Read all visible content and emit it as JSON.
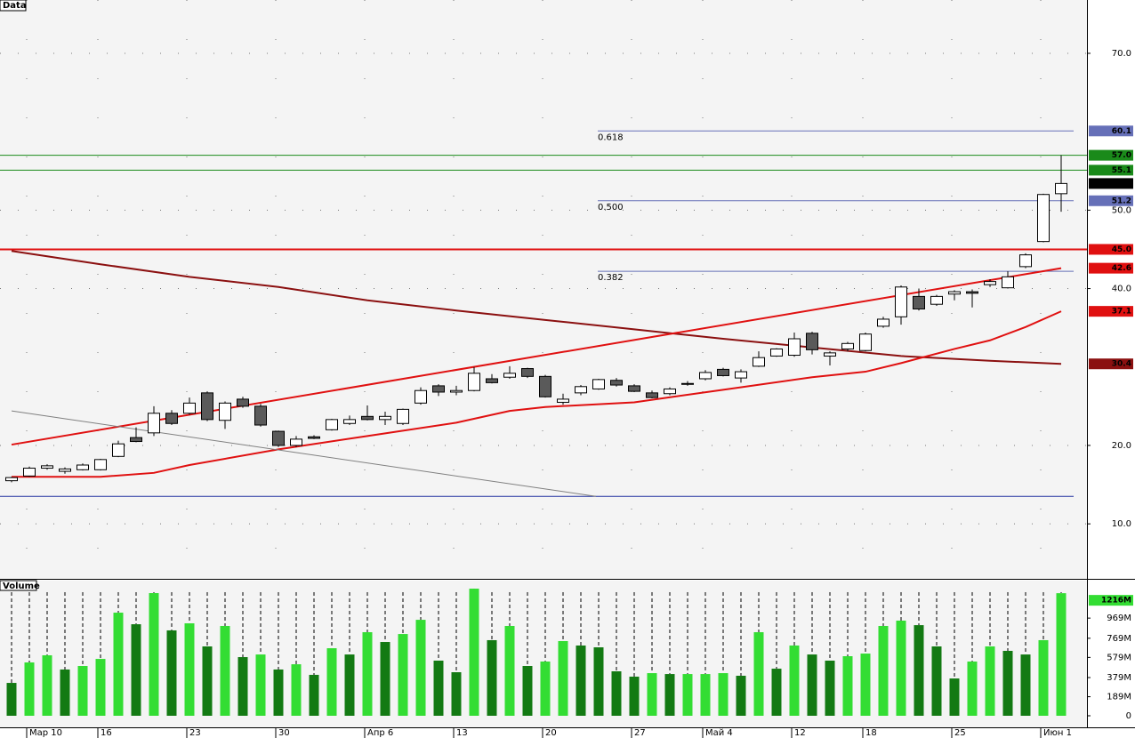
{
  "chart_data": {
    "type": "candlestick",
    "panel_title": "Data",
    "categories": [
      null,
      "Мар 10",
      null,
      null,
      null,
      "16",
      null,
      null,
      null,
      null,
      "23",
      null,
      null,
      null,
      null,
      "30",
      null,
      null,
      null,
      null,
      "Апр 6",
      null,
      null,
      null,
      null,
      "13",
      null,
      null,
      null,
      null,
      "20",
      null,
      null,
      null,
      null,
      "27",
      null,
      null,
      null,
      "Май 4",
      null,
      null,
      null,
      null,
      "12",
      null,
      null,
      null,
      "18",
      null,
      null,
      null,
      null,
      "25",
      null,
      null,
      null,
      null,
      "Июн 1",
      null
    ],
    "open": [
      15.5,
      16.1,
      17.1,
      16.7,
      16.9,
      16.9,
      18.6,
      21.0,
      21.6,
      24.1,
      24.1,
      26.7,
      23.2,
      25.9,
      25.0,
      21.8,
      20.0,
      21.1,
      22.0,
      22.8,
      23.7,
      23.3,
      22.8,
      25.4,
      27.6,
      26.8,
      27.0,
      28.5,
      28.7,
      29.8,
      28.8,
      25.5,
      26.7,
      27.2,
      28.3,
      27.6,
      26.7,
      26.6,
      27.8,
      28.5,
      29.7,
      28.6,
      30.1,
      31.4,
      31.5,
      34.3,
      31.4,
      32.3,
      32.1,
      35.2,
      36.4,
      39.0,
      38.0,
      39.3,
      39.6,
      40.5,
      40.1,
      42.8,
      46.0,
      52.1
    ],
    "high": [
      16.0,
      17.3,
      17.6,
      17.2,
      17.7,
      18.3,
      20.6,
      22.3,
      25.0,
      24.5,
      26.1,
      26.9,
      25.6,
      26.2,
      25.3,
      21.9,
      21.2,
      21.3,
      23.4,
      23.8,
      25.1,
      24.3,
      24.7,
      27.4,
      27.8,
      27.6,
      30.0,
      29.1,
      30.1,
      29.9,
      29.0,
      26.6,
      27.7,
      28.5,
      28.6,
      27.8,
      27.0,
      27.4,
      28.2,
      29.6,
      29.9,
      29.7,
      32.0,
      32.4,
      34.4,
      34.5,
      32.0,
      33.2,
      34.4,
      36.4,
      40.4,
      40.0,
      39.2,
      39.8,
      39.9,
      41.2,
      42.2,
      44.5,
      52.1,
      57.0
    ],
    "low": [
      15.3,
      16.0,
      16.9,
      16.4,
      16.8,
      16.8,
      18.5,
      20.4,
      21.2,
      22.6,
      23.9,
      23.1,
      22.1,
      24.8,
      22.4,
      19.8,
      19.8,
      20.8,
      21.9,
      22.6,
      23.2,
      22.6,
      22.6,
      25.2,
      26.3,
      26.4,
      26.9,
      27.9,
      28.5,
      28.6,
      26.1,
      25.2,
      26.4,
      27.1,
      27.5,
      26.8,
      26.0,
      26.4,
      27.6,
      28.3,
      28.8,
      28.0,
      30.0,
      31.3,
      31.3,
      31.6,
      30.2,
      32.0,
      32.0,
      35.0,
      35.4,
      37.2,
      37.8,
      38.5,
      37.6,
      40.2,
      40.0,
      42.6,
      45.9,
      49.8
    ],
    "close": [
      15.9,
      17.1,
      17.4,
      17.0,
      17.5,
      18.2,
      20.2,
      20.5,
      24.1,
      22.8,
      25.4,
      23.3,
      25.4,
      25.0,
      22.6,
      20.0,
      20.8,
      20.9,
      23.3,
      23.3,
      23.3,
      23.7,
      24.6,
      27.0,
      26.8,
      27.0,
      29.2,
      28.0,
      29.2,
      28.8,
      26.2,
      25.9,
      27.5,
      28.4,
      27.7,
      26.9,
      26.1,
      27.2,
      27.9,
      29.3,
      28.9,
      29.4,
      31.2,
      32.3,
      33.6,
      32.2,
      31.8,
      33.0,
      34.2,
      36.1,
      40.2,
      37.4,
      39.0,
      39.6,
      39.4,
      40.9,
      41.5,
      44.3,
      52.0,
      53.4
    ],
    "up_color": "#ffffff",
    "down_color": "#5a5a5a",
    "ylim": [
      3.1,
      76.8
    ],
    "yticks": [
      {
        "value": 10,
        "label": "10.0"
      },
      {
        "value": 20,
        "label": "20.0"
      },
      {
        "value": 40,
        "label": "40.0"
      },
      {
        "value": 50,
        "label": "50.0"
      },
      {
        "value": 70,
        "label": "70.0"
      }
    ],
    "grid": true,
    "lines": [
      {
        "color": "#8b1010",
        "width": 2,
        "x": [
          0,
          5,
          10,
          15,
          20,
          25,
          30,
          35,
          40,
          45,
          50,
          55,
          59
        ],
        "values": [
          44.8,
          43.1,
          41.5,
          40.2,
          38.5,
          37.2,
          36.0,
          34.8,
          33.6,
          32.5,
          31.4,
          30.8,
          30.4
        ]
      },
      {
        "color": "#e01010",
        "width": 2,
        "x": [
          0,
          59
        ],
        "values": [
          20.1,
          42.6
        ]
      },
      {
        "color": "#e01010",
        "width": 2,
        "x": [
          0,
          5,
          8,
          10,
          15,
          20,
          25,
          28,
          30,
          35,
          40,
          45,
          48,
          50,
          53,
          55,
          57,
          59
        ],
        "values": [
          16.0,
          16.0,
          16.5,
          17.5,
          19.5,
          21.2,
          22.9,
          24.4,
          24.9,
          25.5,
          27.1,
          28.7,
          29.4,
          30.5,
          32.3,
          33.4,
          35.1,
          37.1
        ]
      },
      {
        "color": "#808080",
        "width": 1,
        "x": [
          0,
          32.85
        ],
        "values": [
          24.4,
          13.5
        ]
      }
    ],
    "levels": [
      {
        "value": 60.1,
        "color": "#6670b8",
        "name": "0.618"
      },
      {
        "value": 57.0,
        "color": "#1a8a1a",
        "label": "57.0"
      },
      {
        "value": 55.1,
        "color": "#1a8a1a",
        "label": "55.1"
      },
      {
        "value": 51.2,
        "color": "#6670b8",
        "name": "0.500"
      },
      {
        "value": 45.0,
        "color": "#e01010",
        "label": "45.0"
      },
      {
        "value": 42.2,
        "color": "#6670b8",
        "name": "0.382"
      },
      {
        "value": 13.5,
        "color": "#2030a0"
      }
    ],
    "volume": {
      "panel_title": "Volume",
      "values": [
        326,
        529,
        600,
        459,
        494,
        564,
        1023,
        908,
        1217,
        847,
        917,
        688,
        891,
        582,
        608,
        459,
        511,
        406,
        670,
        608,
        829,
        732,
        811,
        952,
        547,
        432,
        1261,
        750,
        891,
        494,
        538,
        741,
        697,
        679,
        441,
        388,
        423,
        414,
        414,
        414,
        423,
        397,
        829,
        467,
        697,
        608,
        547,
        591,
        617,
        891,
        944,
        899,
        688,
        370,
        538,
        688,
        644,
        608,
        750,
        1216
      ],
      "last_label": "1216M",
      "up_color": "#33dd33",
      "down_color": "#137a13",
      "ylim": [
        0,
        1279
      ],
      "yticks": [
        0,
        {
          "value": 189,
          "label": "189M"
        },
        {
          "value": 379,
          "label": "379M"
        },
        {
          "value": 579,
          "label": "579M"
        },
        {
          "value": 769,
          "label": "769M"
        },
        {
          "value": 969,
          "label": "969M"
        }
      ]
    }
  }
}
